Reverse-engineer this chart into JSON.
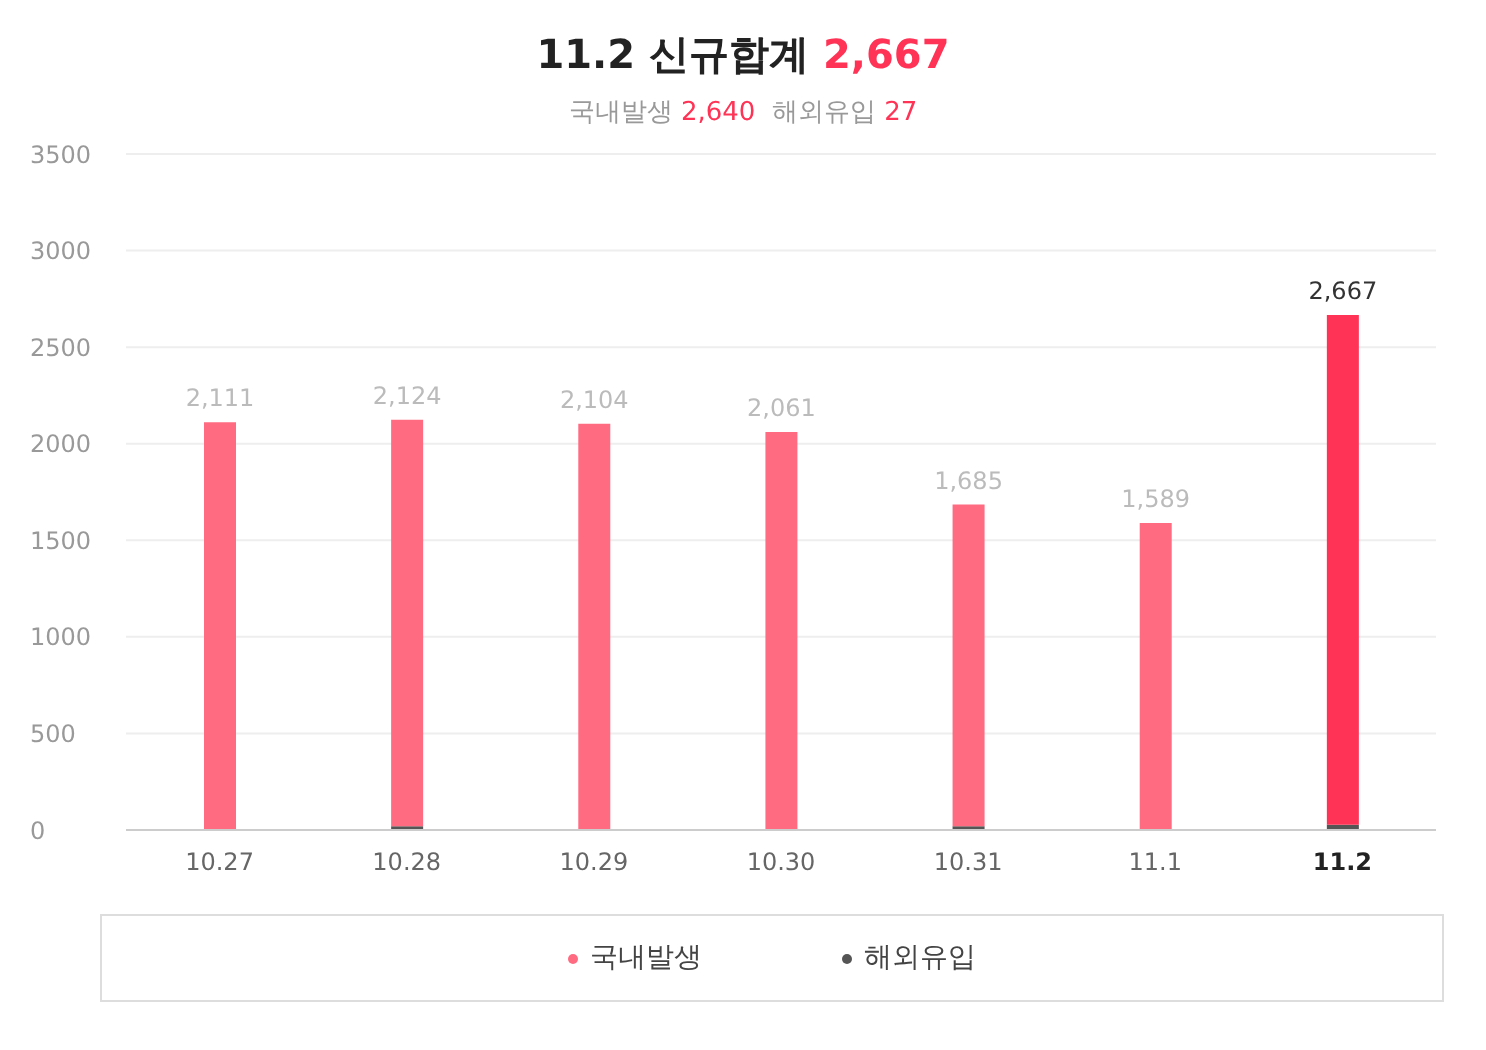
{
  "chart_data": {
    "type": "bar",
    "title": "11.2 신규합계 2,667",
    "subtitle": "국내발생 2,640  해외유입 27",
    "categories": [
      "10.27",
      "10.28",
      "10.29",
      "10.30",
      "10.31",
      "11.1",
      "11.2"
    ],
    "series": [
      {
        "name": "해외유입",
        "color": "#555555",
        "values": [
          null,
          20,
          null,
          null,
          20,
          null,
          27
        ]
      },
      {
        "name": "국내발생",
        "color": "#ff6b81",
        "colors": [
          "#ff6b81",
          "#ff6b81",
          "#ff6b81",
          "#ff6b81",
          "#ff6b81",
          "#ff6b81",
          "#ff3355"
        ],
        "values": [
          2111,
          2104,
          2104,
          2061,
          1665,
          1589,
          2640
        ]
      }
    ],
    "stacked": true,
    "totals": [
      "2,111",
      "2,124",
      "2,104",
      "2,061",
      "1,685",
      "1,589",
      "2,667"
    ],
    "ylim": [
      0,
      3500
    ],
    "yticks": [
      0,
      500,
      1000,
      1500,
      2000,
      2500,
      3000,
      3500
    ],
    "grid": "y",
    "legend": "bottom"
  }
}
